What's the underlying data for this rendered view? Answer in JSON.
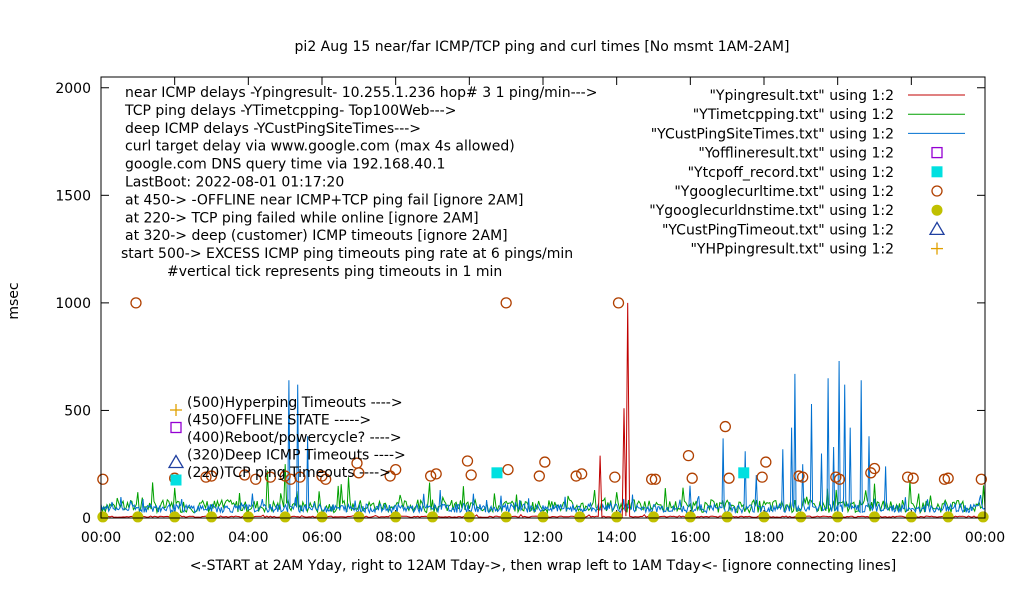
{
  "chart_data": {
    "type": "line",
    "title": "pi2 Aug 15  near/far ICMP/TCP ping and curl times [No msmt 1AM-2AM]",
    "xlabel": "<-START at 2AM Yday, right to 12AM Tday->, then wrap left to 1AM Tday<- [ignore connecting lines]",
    "ylabel": "msec",
    "xlim": [
      0,
      24
    ],
    "ylim": [
      0,
      2050
    ],
    "x_ticks": [
      "00:00",
      "02:00",
      "04:00",
      "06:00",
      "08:00",
      "10:00",
      "12:00",
      "14:00",
      "16:00",
      "18:00",
      "20:00",
      "22:00",
      "00:00"
    ],
    "y_ticks": [
      "0",
      "500",
      "1000",
      "1500",
      "2000"
    ],
    "info_lines": [
      "near ICMP delays -Ypingresult- 10.255.1.236 hop# 3 1 ping/min--->",
      "TCP ping delays -YTimetcpping- Top100Web--->",
      "deep ICMP delays -YCustPingSiteTimes--->",
      "curl target delay via www.google.com (max 4s allowed)",
      "google.com DNS query time via 192.168.40.1",
      "LastBoot: 2022-08-01 01:17:20",
      "at 450-> -OFFLINE near ICMP+TCP ping fail [ignore 2AM]",
      "at 220-> TCP ping failed while online [ignore 2AM]",
      "at 320-> deep (customer) ICMP timeouts [ignore 2AM]",
      "start 500-> EXCESS ICMP ping timeouts ping rate at 6 pings/min",
      "#vertical tick represents ping timeouts in 1 min"
    ],
    "legend_position": "top-right",
    "legend": [
      {
        "name": "\"Ypingresult.txt\" using 1:2",
        "style": "line",
        "color": "#c00000"
      },
      {
        "name": "\"YTimetcpping.txt\" using 1:2",
        "style": "line",
        "color": "#00a000"
      },
      {
        "name": "\"YCustPingSiteTimes.txt\" using 1:2",
        "style": "line",
        "color": "#0070d0"
      },
      {
        "name": "\"Yofflineresult.txt\" using 1:2",
        "style": "open-square",
        "color": "#9400d3"
      },
      {
        "name": "\"Ytcpoff_record.txt\" using 1:2",
        "style": "filled-square",
        "color": "#00e0e0"
      },
      {
        "name": "\"Ygooglecurltime.txt\" using 1:2",
        "style": "open-circle",
        "color": "#b04000"
      },
      {
        "name": "\"Ygooglecurldnstime.txt\" using 1:2",
        "style": "filled-circle",
        "color": "#c0c000"
      },
      {
        "name": "\"YCustPingTimeout.txt\" using 1:2",
        "style": "open-triangle",
        "color": "#2040a0"
      },
      {
        "name": "\"YHPpingresult.txt\" using 1:2",
        "style": "plus",
        "color": "#e0a000"
      }
    ],
    "markers_legend": [
      {
        "label": "(500)Hyperping Timeouts ---->",
        "style": "plus",
        "color": "#e0a000",
        "y": 500
      },
      {
        "label": "(450)OFFLINE STATE ----->",
        "style": "open-square",
        "color": "#9400d3",
        "y": 450
      },
      {
        "label": "(400)Reboot/powercycle? ---->",
        "style": "none",
        "color": "#000000",
        "y": 400
      },
      {
        "label": "(320)Deep ICMP Timeouts ---->",
        "style": "open-triangle",
        "color": "#2040a0",
        "y": 320
      },
      {
        "label": "(220)TCP ping Timeouts ---->",
        "style": "filled-square",
        "color": "#00e0e0",
        "y": 220
      }
    ],
    "series": [
      {
        "name": "\"Ygooglecurltime.txt\" using 1:2",
        "points": [
          [
            0.05,
            180
          ],
          [
            0.95,
            1000
          ],
          [
            2.0,
            185
          ],
          [
            2.85,
            190
          ],
          [
            3.0,
            195
          ],
          [
            3.9,
            200
          ],
          [
            4.2,
            180
          ],
          [
            4.6,
            190
          ],
          [
            5.0,
            195
          ],
          [
            5.15,
            180
          ],
          [
            5.4,
            190
          ],
          [
            6.0,
            195
          ],
          [
            6.1,
            180
          ],
          [
            6.95,
            255
          ],
          [
            7.0,
            210
          ],
          [
            7.85,
            195
          ],
          [
            8.0,
            225
          ],
          [
            8.95,
            195
          ],
          [
            9.1,
            205
          ],
          [
            9.95,
            265
          ],
          [
            10.05,
            200
          ],
          [
            11.0,
            1000
          ],
          [
            11.05,
            225
          ],
          [
            11.9,
            195
          ],
          [
            12.05,
            260
          ],
          [
            12.9,
            195
          ],
          [
            13.05,
            205
          ],
          [
            13.95,
            190
          ],
          [
            14.05,
            1000
          ],
          [
            14.95,
            180
          ],
          [
            15.05,
            180
          ],
          [
            15.95,
            290
          ],
          [
            16.05,
            185
          ],
          [
            16.95,
            425
          ],
          [
            17.05,
            185
          ],
          [
            17.95,
            190
          ],
          [
            18.05,
            260
          ],
          [
            18.95,
            195
          ],
          [
            19.05,
            190
          ],
          [
            19.95,
            190
          ],
          [
            20.05,
            180
          ],
          [
            20.9,
            210
          ],
          [
            21.0,
            230
          ],
          [
            21.9,
            190
          ],
          [
            22.05,
            185
          ],
          [
            22.9,
            180
          ],
          [
            23.0,
            185
          ],
          [
            23.9,
            180
          ]
        ]
      },
      {
        "name": "\"Ytcpoff_record.txt\" using 1:2",
        "points": [
          [
            10.75,
            210
          ],
          [
            17.45,
            210
          ]
        ]
      },
      {
        "name": "\"Ygooglecurldnstime.txt\" using 1:2",
        "points": [
          [
            0.05,
            5
          ],
          [
            1.0,
            5
          ],
          [
            2.0,
            5
          ],
          [
            3.0,
            5
          ],
          [
            4.0,
            5
          ],
          [
            5.0,
            5
          ],
          [
            6.0,
            5
          ],
          [
            7.0,
            5
          ],
          [
            8.0,
            5
          ],
          [
            9.0,
            5
          ],
          [
            10.0,
            5
          ],
          [
            11.0,
            5
          ],
          [
            12.0,
            5
          ],
          [
            13.0,
            5
          ],
          [
            14.0,
            5
          ],
          [
            15.0,
            5
          ],
          [
            16.0,
            5
          ],
          [
            17.0,
            5
          ],
          [
            18.0,
            5
          ],
          [
            19.0,
            5
          ],
          [
            20.0,
            5
          ],
          [
            21.0,
            5
          ],
          [
            22.0,
            5
          ],
          [
            23.0,
            5
          ],
          [
            23.95,
            5
          ]
        ]
      },
      {
        "name": "\"Ypingresult.txt\" using 1:2",
        "spikes": [
          [
            13.55,
            290
          ],
          [
            14.2,
            510
          ],
          [
            14.28,
            1000
          ]
        ]
      },
      {
        "name": "\"YTimetcpping.txt\" using 1:2",
        "spikes": [
          [
            1.0,
            120
          ],
          [
            2.0,
            140
          ],
          [
            4.5,
            220
          ],
          [
            5.0,
            250
          ],
          [
            6.7,
            190
          ],
          [
            8.9,
            165
          ],
          [
            13.4,
            130
          ],
          [
            14.0,
            120
          ],
          [
            21.0,
            160
          ]
        ]
      },
      {
        "name": "\"YCustPingSiteTimes.txt\" using 1:2",
        "spikes": [
          [
            5.1,
            640
          ],
          [
            5.35,
            620
          ],
          [
            5.6,
            380
          ],
          [
            9.2,
            130
          ],
          [
            16.0,
            150
          ],
          [
            16.9,
            370
          ],
          [
            17.5,
            310
          ],
          [
            17.8,
            200
          ],
          [
            18.5,
            320
          ],
          [
            18.75,
            420
          ],
          [
            18.85,
            670
          ],
          [
            19.05,
            250
          ],
          [
            19.3,
            530
          ],
          [
            19.55,
            300
          ],
          [
            19.75,
            650
          ],
          [
            19.9,
            330
          ],
          [
            20.05,
            730
          ],
          [
            20.2,
            620
          ],
          [
            20.35,
            420
          ],
          [
            20.65,
            640
          ],
          [
            20.85,
            380
          ],
          [
            21.3,
            240
          ]
        ]
      }
    ]
  }
}
